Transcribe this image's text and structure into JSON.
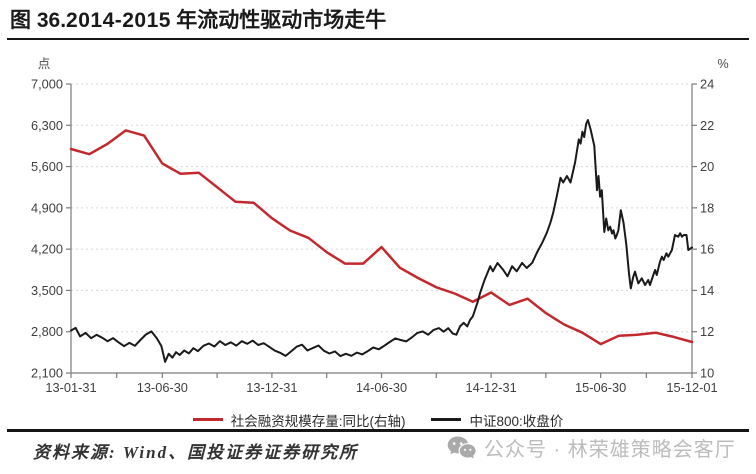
{
  "header": {
    "prefix": "图 36.",
    "number": "2014-2015",
    "suffix": " 年流动性驱动市场走牛"
  },
  "chart_data": {
    "type": "line",
    "title": "图 36.2014-2015 年流动性驱动市场走牛",
    "grid": true,
    "legend_position": "bottom",
    "left_axis": {
      "unit": "点",
      "min": 2100,
      "max": 7000,
      "tick_values": [
        7000,
        6300,
        5600,
        4900,
        4200,
        3500,
        2800,
        2100
      ],
      "tick_labels": [
        "7,000",
        "6,300",
        "5,600",
        "4,900",
        "4,200",
        "3,500",
        "2,800",
        "2,100"
      ]
    },
    "right_axis": {
      "unit": "%",
      "min": 10,
      "max": 24,
      "tick_values": [
        24,
        22,
        20,
        18,
        16,
        14,
        12,
        10
      ],
      "tick_labels": [
        "24",
        "22",
        "20",
        "18",
        "16",
        "14",
        "12",
        "10"
      ]
    },
    "x_axis": {
      "months_span": 34,
      "tick_labels": [
        "13-01-31",
        "13-06-30",
        "13-12-31",
        "14-06-30",
        "14-12-31",
        "15-06-30",
        "15-12-01"
      ],
      "tick_months": [
        0,
        5,
        11,
        17,
        23,
        29,
        34
      ]
    },
    "series": [
      {
        "name": "社会融资规模存量:同比(右轴)",
        "axis": "right",
        "color": "#c2282e",
        "width": 2.5,
        "points": [
          [
            0,
            20.85
          ],
          [
            1,
            20.6
          ],
          [
            2,
            21.1
          ],
          [
            3,
            21.75
          ],
          [
            4,
            21.5
          ],
          [
            5,
            20.15
          ],
          [
            6,
            19.65
          ],
          [
            7,
            19.7
          ],
          [
            8,
            19.0
          ],
          [
            9,
            18.3
          ],
          [
            10,
            18.25
          ],
          [
            11,
            17.5
          ],
          [
            12,
            16.9
          ],
          [
            13,
            16.55
          ],
          [
            14,
            15.85
          ],
          [
            15,
            15.3
          ],
          [
            16,
            15.3
          ],
          [
            17,
            16.1
          ],
          [
            18,
            15.1
          ],
          [
            19,
            14.6
          ],
          [
            20,
            14.15
          ],
          [
            21,
            13.85
          ],
          [
            22,
            13.45
          ],
          [
            23,
            13.9
          ],
          [
            24,
            13.3
          ],
          [
            25,
            13.6
          ],
          [
            26,
            12.9
          ],
          [
            27,
            12.35
          ],
          [
            28,
            11.95
          ],
          [
            29,
            11.4
          ],
          [
            30,
            11.8
          ],
          [
            31,
            11.85
          ],
          [
            32,
            11.95
          ],
          [
            33,
            11.75
          ],
          [
            34,
            11.5
          ]
        ]
      },
      {
        "name": "中证800:收盘价",
        "axis": "left",
        "color": "#1a1a1a",
        "width": 2,
        "points": [
          [
            0,
            2820
          ],
          [
            0.25,
            2865
          ],
          [
            0.5,
            2720
          ],
          [
            0.8,
            2780
          ],
          [
            1.1,
            2690
          ],
          [
            1.4,
            2748
          ],
          [
            1.7,
            2700
          ],
          [
            2,
            2640
          ],
          [
            2.3,
            2692
          ],
          [
            2.6,
            2620
          ],
          [
            2.9,
            2556
          ],
          [
            3.2,
            2610
          ],
          [
            3.5,
            2562
          ],
          [
            3.8,
            2660
          ],
          [
            4.1,
            2752
          ],
          [
            4.4,
            2806
          ],
          [
            4.7,
            2690
          ],
          [
            4.95,
            2556
          ],
          [
            5.15,
            2290
          ],
          [
            5.35,
            2425
          ],
          [
            5.55,
            2360
          ],
          [
            5.75,
            2452
          ],
          [
            5.95,
            2405
          ],
          [
            6.2,
            2482
          ],
          [
            6.45,
            2432
          ],
          [
            6.7,
            2520
          ],
          [
            6.95,
            2472
          ],
          [
            7.25,
            2562
          ],
          [
            7.55,
            2600
          ],
          [
            7.85,
            2550
          ],
          [
            8.15,
            2640
          ],
          [
            8.45,
            2575
          ],
          [
            8.75,
            2620
          ],
          [
            9.05,
            2565
          ],
          [
            9.35,
            2640
          ],
          [
            9.65,
            2595
          ],
          [
            9.95,
            2650
          ],
          [
            10.25,
            2575
          ],
          [
            10.55,
            2605
          ],
          [
            10.85,
            2545
          ],
          [
            11.15,
            2480
          ],
          [
            11.45,
            2442
          ],
          [
            11.75,
            2390
          ],
          [
            12.05,
            2466
          ],
          [
            12.35,
            2546
          ],
          [
            12.65,
            2580
          ],
          [
            12.95,
            2482
          ],
          [
            13.25,
            2526
          ],
          [
            13.55,
            2566
          ],
          [
            13.85,
            2476
          ],
          [
            14.15,
            2430
          ],
          [
            14.45,
            2466
          ],
          [
            14.75,
            2386
          ],
          [
            15.05,
            2426
          ],
          [
            15.35,
            2392
          ],
          [
            15.65,
            2446
          ],
          [
            15.95,
            2416
          ],
          [
            16.25,
            2472
          ],
          [
            16.55,
            2532
          ],
          [
            16.85,
            2502
          ],
          [
            17.15,
            2562
          ],
          [
            17.45,
            2626
          ],
          [
            17.75,
            2686
          ],
          [
            18.05,
            2660
          ],
          [
            18.35,
            2636
          ],
          [
            18.65,
            2700
          ],
          [
            18.95,
            2776
          ],
          [
            19.25,
            2806
          ],
          [
            19.55,
            2750
          ],
          [
            19.85,
            2830
          ],
          [
            20.15,
            2862
          ],
          [
            20.4,
            2800
          ],
          [
            20.65,
            2860
          ],
          [
            20.9,
            2770
          ],
          [
            21.1,
            2750
          ],
          [
            21.3,
            2890
          ],
          [
            21.5,
            2950
          ],
          [
            21.7,
            2890
          ],
          [
            21.85,
            3000
          ],
          [
            22,
            3060
          ],
          [
            22.25,
            3290
          ],
          [
            22.4,
            3457
          ],
          [
            22.65,
            3683
          ],
          [
            22.95,
            3910
          ],
          [
            23.1,
            3825
          ],
          [
            23.35,
            3965
          ],
          [
            23.65,
            3853
          ],
          [
            23.9,
            3740
          ],
          [
            24.15,
            3910
          ],
          [
            24.4,
            3825
          ],
          [
            24.7,
            3967
          ],
          [
            24.95,
            3880
          ],
          [
            25.25,
            3967
          ],
          [
            25.5,
            4137
          ],
          [
            25.8,
            4307
          ],
          [
            26.05,
            4477
          ],
          [
            26.25,
            4648
          ],
          [
            26.4,
            4818
          ],
          [
            26.6,
            5100
          ],
          [
            26.8,
            5410
          ],
          [
            26.95,
            5330
          ],
          [
            27.15,
            5440
          ],
          [
            27.35,
            5330
          ],
          [
            27.6,
            5670
          ],
          [
            27.8,
            6060
          ],
          [
            27.9,
            5990
          ],
          [
            28,
            6190
          ],
          [
            28.1,
            6100
          ],
          [
            28.2,
            6320
          ],
          [
            28.3,
            6390
          ],
          [
            28.45,
            6230
          ],
          [
            28.65,
            5950
          ],
          [
            28.8,
            5200
          ],
          [
            28.88,
            5440
          ],
          [
            28.97,
            5090
          ],
          [
            29.06,
            5200
          ],
          [
            29.2,
            4490
          ],
          [
            29.3,
            4720
          ],
          [
            29.42,
            4520
          ],
          [
            29.52,
            4580
          ],
          [
            29.62,
            4465
          ],
          [
            29.7,
            4520
          ],
          [
            29.8,
            4380
          ],
          [
            29.88,
            4435
          ],
          [
            29.97,
            4520
          ],
          [
            30.1,
            4860
          ],
          [
            30.25,
            4650
          ],
          [
            30.4,
            4294
          ],
          [
            30.55,
            3785
          ],
          [
            30.65,
            3535
          ],
          [
            30.78,
            3728
          ],
          [
            30.88,
            3817
          ],
          [
            31.06,
            3620
          ],
          [
            31.25,
            3705
          ],
          [
            31.43,
            3592
          ],
          [
            31.6,
            3677
          ],
          [
            31.7,
            3592
          ],
          [
            31.88,
            3761
          ],
          [
            31.98,
            3846
          ],
          [
            32.07,
            3761
          ],
          [
            32.25,
            3987
          ],
          [
            32.35,
            4072
          ],
          [
            32.45,
            4016
          ],
          [
            32.6,
            4129
          ],
          [
            32.7,
            4072
          ],
          [
            32.9,
            4185
          ],
          [
            33.07,
            4440
          ],
          [
            33.25,
            4411
          ],
          [
            33.35,
            4468
          ],
          [
            33.45,
            4411
          ],
          [
            33.55,
            4440
          ],
          [
            33.7,
            4440
          ],
          [
            33.8,
            4185
          ],
          [
            34,
            4230
          ]
        ]
      }
    ]
  },
  "legend": {
    "items": [
      {
        "label": "社会融资规模存量:同比(右轴)",
        "color": "#c2282e"
      },
      {
        "label": "中证800:收盘价",
        "color": "#1a1a1a"
      }
    ]
  },
  "footer": {
    "source": "资料来源: Wind、国投证券证券研究所",
    "watermark": "公众号 · 林荣雄策略会客厅"
  }
}
